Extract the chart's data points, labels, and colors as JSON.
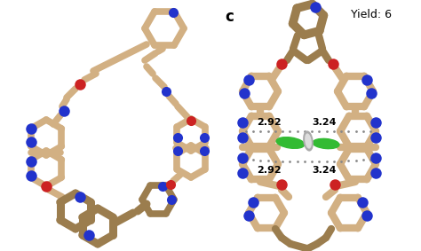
{
  "background_color": "#ffffff",
  "label_c": "c",
  "label_yield": "Yield: 6",
  "bond_color_tan": "#D2B083",
  "bond_color_tan_dark": "#9B7D4E",
  "bond_color_blue": "#2233CC",
  "bond_color_red": "#CC2222",
  "bond_color_green": "#33BB33",
  "bond_color_gray": "#AAAAAA",
  "bond_color_gray2": "#888888",
  "dist_top_left": "2.92",
  "dist_top_right": "3.24",
  "dist_bot_left": "2.92",
  "dist_bot_right": "3.24",
  "figsize": [
    4.74,
    2.83
  ],
  "dpi": 100
}
